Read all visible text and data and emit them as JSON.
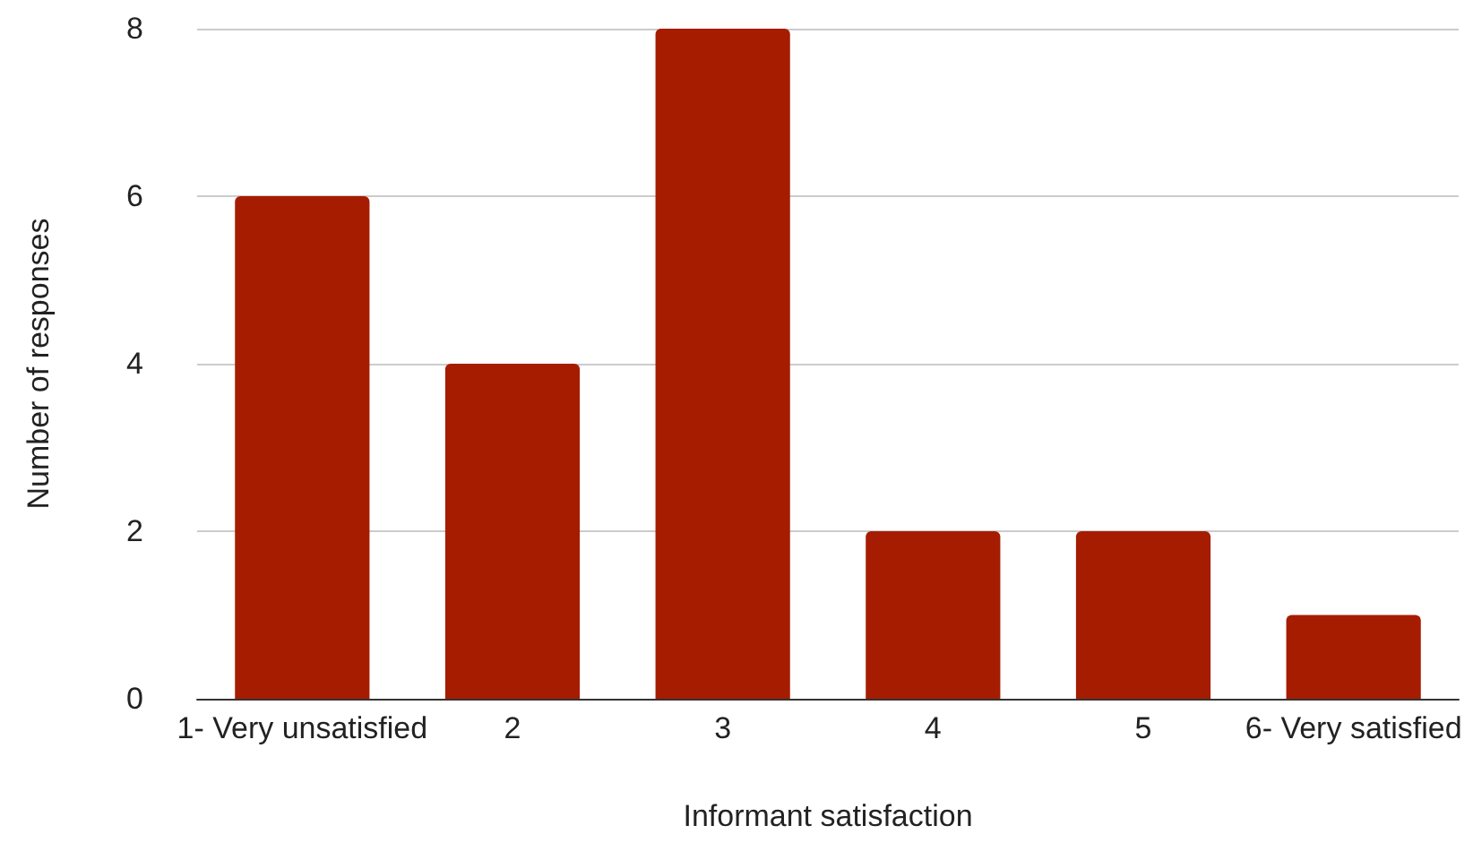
{
  "chart_data": {
    "type": "bar",
    "xlabel": "Informant satisfaction",
    "ylabel": "Number of responses",
    "categories": [
      "1- Very unsatisfied",
      "2",
      "3",
      "4",
      "5",
      "6- Very satisfied"
    ],
    "values": [
      6,
      4,
      8,
      2,
      2,
      1
    ],
    "color": "#a61c00",
    "ylim": [
      0,
      8
    ],
    "yticks": [
      0,
      2,
      4,
      6,
      8
    ],
    "grid": "y"
  }
}
